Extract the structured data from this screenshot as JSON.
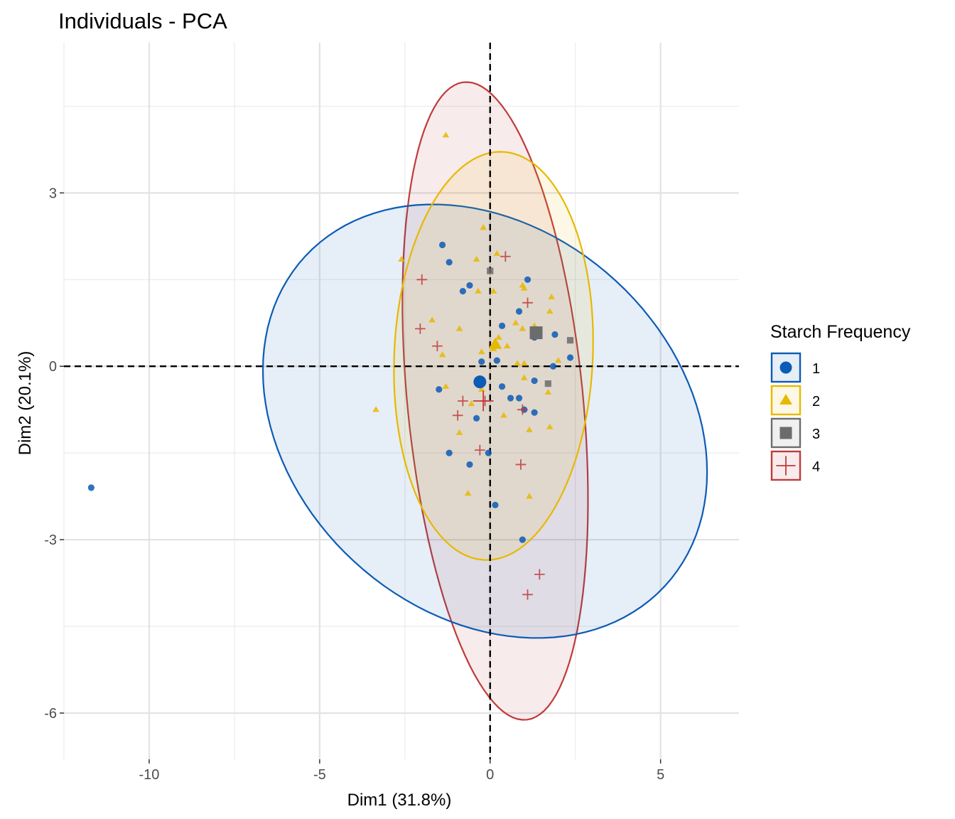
{
  "chart_data": {
    "type": "scatter",
    "title": "Individuals - PCA",
    "xlabel": "Dim1 (31.8%)",
    "ylabel": "Dim2 (20.1%)",
    "xlim": [
      -12.5,
      7.3
    ],
    "ylim": [
      -6.8,
      5.6
    ],
    "xticks": [
      -10,
      -5,
      0,
      5
    ],
    "yticks": [
      -6,
      -3,
      0,
      3
    ],
    "xtick_labels": [
      "-10",
      "-5",
      "0",
      "5"
    ],
    "ytick_labels": [
      "-6",
      "-3",
      "0",
      "3"
    ],
    "grid": true,
    "reference_lines": {
      "x": 0,
      "y": 0,
      "style": "dashed"
    },
    "legend": {
      "title": "Starch Frequency",
      "position": "right"
    },
    "series": [
      {
        "name": "1",
        "color": "#0C5BB5",
        "shape": "circle",
        "centroid": [
          -0.3,
          -0.27
        ],
        "ellipse": {
          "cx": -0.15,
          "cy": -0.95,
          "rx": 6.6,
          "ry": 3.6,
          "rotation_deg": -11
        },
        "points": [
          [
            -11.7,
            -2.1
          ],
          [
            -1.4,
            2.1
          ],
          [
            -1.2,
            1.8
          ],
          [
            -0.6,
            1.4
          ],
          [
            -0.8,
            1.3
          ],
          [
            1.1,
            1.5
          ],
          [
            0.85,
            0.95
          ],
          [
            0.35,
            0.7
          ],
          [
            -0.25,
            0.08
          ],
          [
            0.2,
            0.1
          ],
          [
            1.3,
            0.5
          ],
          [
            1.85,
            0.0
          ],
          [
            2.35,
            0.15
          ],
          [
            1.9,
            0.55
          ],
          [
            1.3,
            -0.25
          ],
          [
            -1.5,
            -0.4
          ],
          [
            0.35,
            -0.35
          ],
          [
            0.6,
            -0.55
          ],
          [
            0.85,
            -0.55
          ],
          [
            1.0,
            -0.75
          ],
          [
            1.3,
            -0.8
          ],
          [
            -0.4,
            -0.9
          ],
          [
            -1.2,
            -1.5
          ],
          [
            -0.05,
            -1.5
          ],
          [
            -0.6,
            -1.7
          ],
          [
            0.15,
            -2.4
          ],
          [
            0.95,
            -3.0
          ]
        ]
      },
      {
        "name": "2",
        "color": "#E7B800",
        "shape": "triangle",
        "centroid": [
          0.15,
          0.38
        ],
        "ellipse": {
          "cx": 0.1,
          "cy": 0.18,
          "rx": 2.9,
          "ry": 3.55,
          "rotation_deg": -10
        },
        "points": [
          [
            -1.3,
            4.0
          ],
          [
            -0.2,
            2.4
          ],
          [
            -2.6,
            1.85
          ],
          [
            -0.4,
            1.85
          ],
          [
            0.2,
            1.95
          ],
          [
            -0.35,
            1.3
          ],
          [
            0.1,
            1.3
          ],
          [
            0.95,
            1.4
          ],
          [
            1.0,
            1.35
          ],
          [
            1.8,
            1.2
          ],
          [
            1.75,
            0.95
          ],
          [
            -1.7,
            0.8
          ],
          [
            -0.9,
            0.65
          ],
          [
            0.75,
            0.75
          ],
          [
            0.95,
            0.65
          ],
          [
            1.3,
            0.7
          ],
          [
            0.25,
            0.5
          ],
          [
            0.1,
            0.3
          ],
          [
            0.5,
            0.35
          ],
          [
            -1.4,
            0.2
          ],
          [
            -0.25,
            0.25
          ],
          [
            0.8,
            0.05
          ],
          [
            1.0,
            0.05
          ],
          [
            2.0,
            0.1
          ],
          [
            -1.3,
            -0.35
          ],
          [
            -0.25,
            -0.4
          ],
          [
            1.0,
            -0.2
          ],
          [
            1.7,
            -0.45
          ],
          [
            -0.55,
            -0.65
          ],
          [
            0.4,
            -0.85
          ],
          [
            -3.35,
            -0.75
          ],
          [
            -0.9,
            -1.15
          ],
          [
            1.15,
            -1.1
          ],
          [
            1.75,
            -1.05
          ],
          [
            -0.65,
            -2.2
          ],
          [
            1.15,
            -2.25
          ]
        ]
      },
      {
        "name": "3",
        "color": "#6C6C6C",
        "shape": "square",
        "centroid": [
          1.35,
          0.58
        ],
        "points": [
          [
            0.0,
            1.65
          ],
          [
            1.7,
            -0.3
          ],
          [
            2.35,
            0.45
          ]
        ]
      },
      {
        "name": "4",
        "color": "#BF3B3B",
        "shape": "cross",
        "centroid": [
          -0.2,
          -0.6
        ],
        "ellipse": {
          "cx": 0.15,
          "cy": -0.6,
          "rx": 2.55,
          "ry": 5.6,
          "rotation_deg": 11
        },
        "points": [
          [
            0.45,
            1.9
          ],
          [
            -2.0,
            1.5
          ],
          [
            1.1,
            1.1
          ],
          [
            -2.05,
            0.65
          ],
          [
            -1.55,
            0.35
          ],
          [
            -0.8,
            -0.6
          ],
          [
            -0.15,
            -0.6
          ],
          [
            -0.95,
            -0.85
          ],
          [
            0.95,
            -0.75
          ],
          [
            -0.3,
            -1.45
          ],
          [
            0.9,
            -1.7
          ],
          [
            1.45,
            -3.6
          ],
          [
            1.1,
            -3.95
          ]
        ]
      }
    ]
  }
}
